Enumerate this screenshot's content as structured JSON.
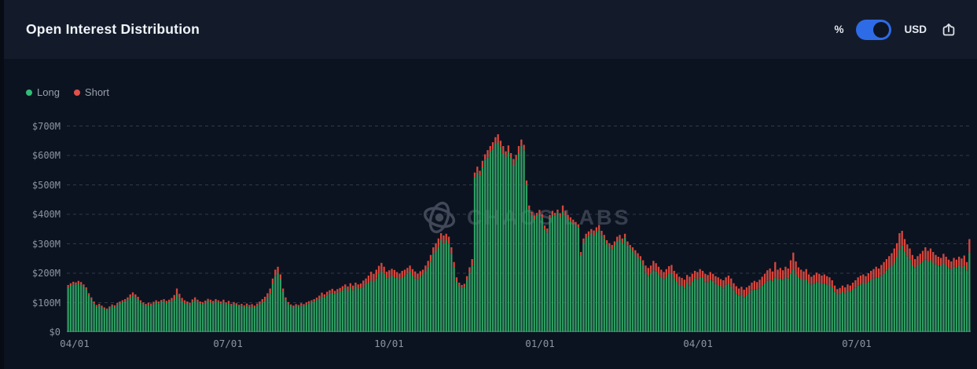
{
  "header": {
    "title": "Open Interest Distribution",
    "toggle": {
      "left_label": "%",
      "right_label": "USD",
      "selected": "USD",
      "color": "#2e6be6"
    },
    "export_icon": "share-export"
  },
  "legend": [
    {
      "label": "Long",
      "dot_color": "#2fbe76"
    },
    {
      "label": "Short",
      "dot_color": "#e2504a"
    }
  ],
  "watermark": {
    "text": "CHAOS LABS"
  },
  "chart_data": {
    "type": "bar",
    "stacked": true,
    "title": "Open Interest Distribution",
    "unit": "USD, millions",
    "ylabel": "",
    "xlabel": "",
    "ylim": [
      0,
      700
    ],
    "grid": "dashed-horizontal",
    "legend_position": "top-left",
    "y_ticks": [
      "$0",
      "$100M",
      "$200M",
      "$300M",
      "$400M",
      "$500M",
      "$600M",
      "$700M"
    ],
    "x_ticks": [
      {
        "label": "04/01",
        "f": 0.0087
      },
      {
        "label": "07/01",
        "f": 0.1783
      },
      {
        "label": "10/01",
        "f": 0.3565
      },
      {
        "label": "01/01",
        "f": 0.5235
      },
      {
        "label": "04/01",
        "f": 0.6983
      },
      {
        "label": "07/01",
        "f": 0.8739
      }
    ],
    "series": [
      {
        "name": "Long",
        "color": "#2e9d62",
        "note": "long_musd = total_musd - short_musd"
      },
      {
        "name": "Short",
        "color": "#d7473e",
        "note": "red cap stacked on top of long"
      }
    ],
    "total_musd": [
      160,
      166,
      171,
      169,
      174,
      170,
      162,
      152,
      132,
      118,
      104,
      92,
      96,
      90,
      84,
      80,
      87,
      94,
      91,
      99,
      104,
      108,
      112,
      118,
      128,
      135,
      128,
      120,
      108,
      101,
      96,
      100,
      97,
      103,
      108,
      104,
      109,
      112,
      106,
      110,
      116,
      126,
      148,
      130,
      116,
      108,
      104,
      100,
      111,
      118,
      110,
      104,
      102,
      107,
      113,
      110,
      106,
      112,
      108,
      104,
      110,
      101,
      106,
      96,
      102,
      98,
      93,
      96,
      91,
      97,
      92,
      95,
      90,
      97,
      104,
      112,
      120,
      132,
      148,
      182,
      212,
      222,
      196,
      148,
      118,
      102,
      94,
      90,
      95,
      92,
      98,
      95,
      101,
      105,
      108,
      112,
      117,
      124,
      134,
      128,
      137,
      142,
      147,
      140,
      146,
      150,
      156,
      162,
      155,
      166,
      158,
      168,
      162,
      165,
      175,
      182,
      192,
      205,
      198,
      212,
      225,
      235,
      222,
      205,
      210,
      215,
      211,
      204,
      199,
      208,
      212,
      218,
      226,
      214,
      206,
      199,
      207,
      212,
      226,
      242,
      262,
      288,
      302,
      318,
      336,
      328,
      334,
      324,
      288,
      238,
      186,
      168,
      160,
      164,
      190,
      220,
      248,
      542,
      562,
      548,
      582,
      604,
      618,
      632,
      645,
      662,
      672,
      650,
      632,
      614,
      634,
      608,
      588,
      602,
      632,
      654,
      636,
      515,
      430,
      408,
      396,
      405,
      415,
      400,
      362,
      352,
      398,
      412,
      405,
      416,
      404,
      430,
      412,
      398,
      390,
      382,
      374,
      366,
      272,
      318,
      334,
      342,
      350,
      345,
      356,
      364,
      344,
      330,
      312,
      302,
      296,
      308,
      324,
      330,
      318,
      334,
      308,
      296,
      288,
      278,
      268,
      258,
      244,
      226,
      218,
      226,
      242,
      234,
      222,
      212,
      204,
      214,
      224,
      228,
      208,
      198,
      188,
      184,
      178,
      194,
      188,
      198,
      208,
      204,
      214,
      208,
      198,
      194,
      204,
      198,
      190,
      186,
      180,
      176,
      186,
      192,
      182,
      166,
      156,
      148,
      154,
      144,
      152,
      158,
      168,
      174,
      170,
      178,
      188,
      198,
      210,
      216,
      206,
      238,
      212,
      218,
      210,
      222,
      216,
      244,
      270,
      240,
      220,
      212,
      206,
      214,
      196,
      188,
      194,
      202,
      198,
      192,
      196,
      190,
      186,
      176,
      158,
      146,
      150,
      158,
      152,
      162,
      158,
      168,
      176,
      186,
      192,
      196,
      190,
      200,
      208,
      214,
      222,
      216,
      228,
      238,
      248,
      258,
      268,
      284,
      302,
      336,
      344,
      316,
      298,
      284,
      262,
      248,
      258,
      266,
      276,
      288,
      276,
      284,
      272,
      262,
      256,
      252,
      266,
      256,
      246,
      240,
      252,
      246,
      256,
      250,
      260,
      238,
      316
    ],
    "short_musd": [
      8,
      6,
      9,
      7,
      10,
      8,
      7,
      6,
      6,
      5,
      7,
      6,
      5,
      6,
      5,
      5,
      6,
      5,
      7,
      6,
      5,
      6,
      7,
      9,
      12,
      10,
      11,
      8,
      7,
      6,
      5,
      7,
      6,
      8,
      6,
      7,
      5,
      6,
      7,
      6,
      10,
      14,
      20,
      15,
      12,
      9,
      8,
      7,
      9,
      10,
      8,
      7,
      7,
      8,
      6,
      9,
      7,
      8,
      6,
      7,
      9,
      6,
      8,
      5,
      7,
      6,
      5,
      6,
      5,
      7,
      6,
      8,
      6,
      7,
      9,
      11,
      14,
      16,
      18,
      18,
      22,
      20,
      16,
      12,
      9,
      7,
      6,
      6,
      7,
      5,
      8,
      6,
      7,
      8,
      6,
      9,
      8,
      11,
      13,
      10,
      12,
      11,
      13,
      10,
      12,
      12,
      14,
      11,
      15,
      12,
      16,
      13,
      14,
      16,
      22,
      18,
      24,
      30,
      26,
      30,
      26,
      28,
      24,
      22,
      26,
      22,
      25,
      20,
      18,
      24,
      22,
      20,
      18,
      22,
      24,
      20,
      18,
      16,
      18,
      20,
      24,
      22,
      26,
      28,
      24,
      26,
      22,
      24,
      22,
      18,
      14,
      12,
      10,
      10,
      14,
      18,
      22,
      16,
      20,
      15,
      22,
      18,
      24,
      20,
      26,
      22,
      28,
      20,
      24,
      18,
      22,
      16,
      20,
      18,
      24,
      20,
      18,
      14,
      12,
      10,
      12,
      9,
      14,
      10,
      12,
      14,
      11,
      13,
      10,
      9,
      12,
      22,
      16,
      14,
      12,
      11,
      10,
      11,
      10,
      14,
      14,
      16,
      13,
      17,
      15,
      18,
      14,
      12,
      13,
      11,
      14,
      12,
      16,
      13,
      15,
      12,
      14,
      11,
      12,
      14,
      16,
      13,
      15,
      24,
      28,
      25,
      32,
      28,
      26,
      25,
      23,
      26,
      24,
      28,
      25,
      26,
      28,
      25,
      29,
      26,
      30,
      27,
      25,
      25,
      27,
      24,
      28,
      25,
      26,
      24,
      27,
      26,
      24,
      27,
      25,
      28,
      27,
      24,
      26,
      25,
      27,
      26,
      28,
      26,
      26,
      28,
      25,
      29,
      30,
      32,
      36,
      38,
      32,
      52,
      32,
      36,
      32,
      38,
      34,
      46,
      58,
      44,
      36,
      32,
      30,
      34,
      28,
      26,
      28,
      32,
      30,
      27,
      30,
      28,
      26,
      24,
      20,
      18,
      20,
      22,
      19,
      22,
      20,
      24,
      26,
      28,
      30,
      28,
      26,
      29,
      32,
      32,
      36,
      32,
      38,
      40,
      38,
      42,
      44,
      48,
      46,
      54,
      50,
      44,
      40,
      38,
      34,
      30,
      34,
      34,
      38,
      42,
      36,
      40,
      36,
      32,
      30,
      28,
      34,
      32,
      28,
      26,
      30,
      28,
      32,
      30,
      34,
      28,
      46
    ]
  },
  "style": {
    "bar_green": "#2e9d62",
    "bar_red": "#d7473e",
    "grid_color": "#3e4657",
    "axis_label_color": "#8b93a2",
    "header_bg": "#131b2b",
    "chart_bg": "#0c1320",
    "toggle_blue": "#2e6be6"
  }
}
